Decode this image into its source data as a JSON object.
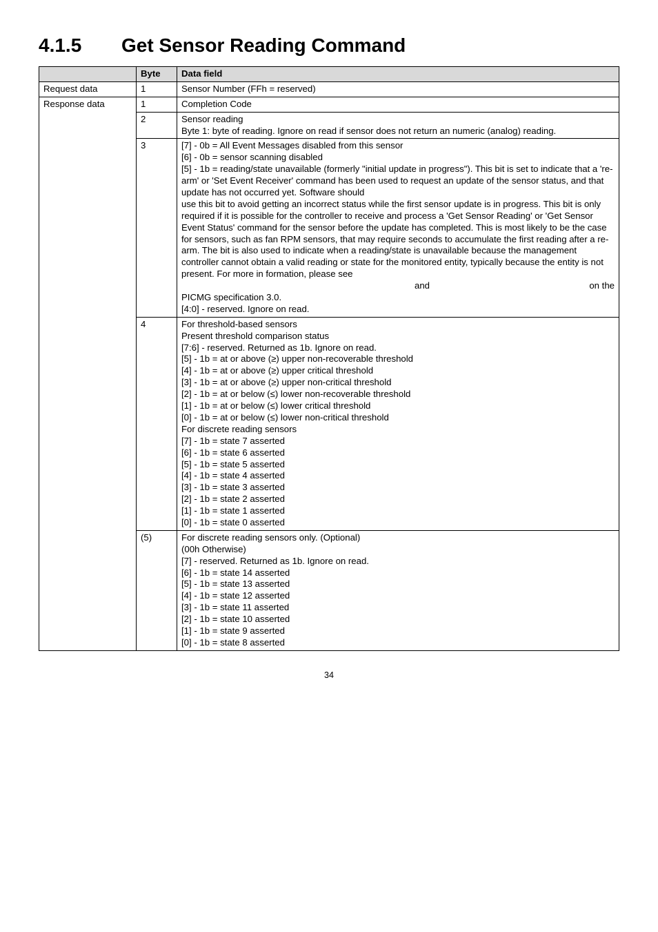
{
  "heading": {
    "number": "4.1.5",
    "title": "Get Sensor Reading Command"
  },
  "columns": {
    "c1": "",
    "c2": "Byte",
    "c3": "Data field"
  },
  "rows": {
    "request": {
      "label": "Request data",
      "byte": "1",
      "data": "Sensor Number (FFh = reserved)"
    },
    "resp1": {
      "label": "Response data",
      "byte": "1",
      "data": "Completion Code"
    },
    "resp2": {
      "byte": "2",
      "l1": "Sensor reading",
      "l2": "Byte 1: byte of reading. Ignore on read if sensor does not return an numeric (analog) reading."
    },
    "resp3": {
      "byte": "3",
      "l1": "[7] - 0b = All Event Messages disabled from this sensor",
      "l2": "[6] - 0b = sensor scanning disabled",
      "l3": "[5] - 1b = reading/state unavailable (formerly \"initial update in progress\"). This bit is set to indicate that a 're-arm' or 'Set Event Receiver' command has been used to request an update of the sensor status, and that update has not occurred yet. Software should",
      "l4": "use this bit to avoid getting an incorrect status while the first sensor update is in progress. This bit is only required if it is possible for the controller to receive and process a 'Get Sensor Reading' or 'Get Sensor Event Status' command for the sensor before the update has completed. This is most likely to be the case for sensors, such as fan RPM sensors, that may require seconds to accumulate the first reading after a re-arm. The bit is also used to indicate when a reading/state is unavailable because the management controller cannot obtain a valid reading or state for the monitored entity, typically because the entity is not present. For more in formation, please see",
      "and": "and",
      "onthe": "on the",
      "l5": "PICMG specification 3.0.",
      "l6": "[4:0] - reserved. Ignore on read."
    },
    "resp4": {
      "byte": "4",
      "l1": "For threshold-based sensors",
      "l2": "Present threshold comparison status",
      "l3": "[7:6] - reserved. Returned as 1b. Ignore on read.",
      "l4": "[5] - 1b = at or above (≥) upper non-recoverable threshold",
      "l5": "[4] - 1b = at or above (≥) upper critical threshold",
      "l6": "[3] - 1b = at or above (≥) upper non-critical threshold",
      "l7": "[2] - 1b = at or below (≤) lower non-recoverable threshold",
      "l8": "[1] - 1b = at or below (≤) lower critical threshold",
      "l9": "[0] - 1b = at or below (≤) lower non-critical threshold",
      "l10": "For discrete reading sensors",
      "l11": "[7] - 1b = state 7 asserted",
      "l12": "[6] - 1b = state 6 asserted",
      "l13": "[5] - 1b = state 5 asserted",
      "l14": "[4] - 1b = state 4 asserted",
      "l15": "[3] - 1b = state 3 asserted",
      "l16": "[2] - 1b = state 2 asserted",
      "l17": "[1] - 1b = state 1 asserted",
      "l18": "[0] - 1b = state 0 asserted"
    },
    "resp5": {
      "byte": "(5)",
      "l1": "For discrete reading sensors only. (Optional)",
      "l2": "(00h Otherwise)",
      "l3": "[7] - reserved. Returned as 1b. Ignore on read.",
      "l4": "[6] - 1b = state 14 asserted",
      "l5": "[5] - 1b = state 13 asserted",
      "l6": "[4] - 1b = state 12 asserted",
      "l7": "[3] - 1b = state 11 asserted",
      "l8": "[2] - 1b = state 10 asserted",
      "l9": "[1] - 1b = state 9 asserted",
      "l10": "[0] - 1b = state 8 asserted"
    }
  },
  "page_number": "34"
}
